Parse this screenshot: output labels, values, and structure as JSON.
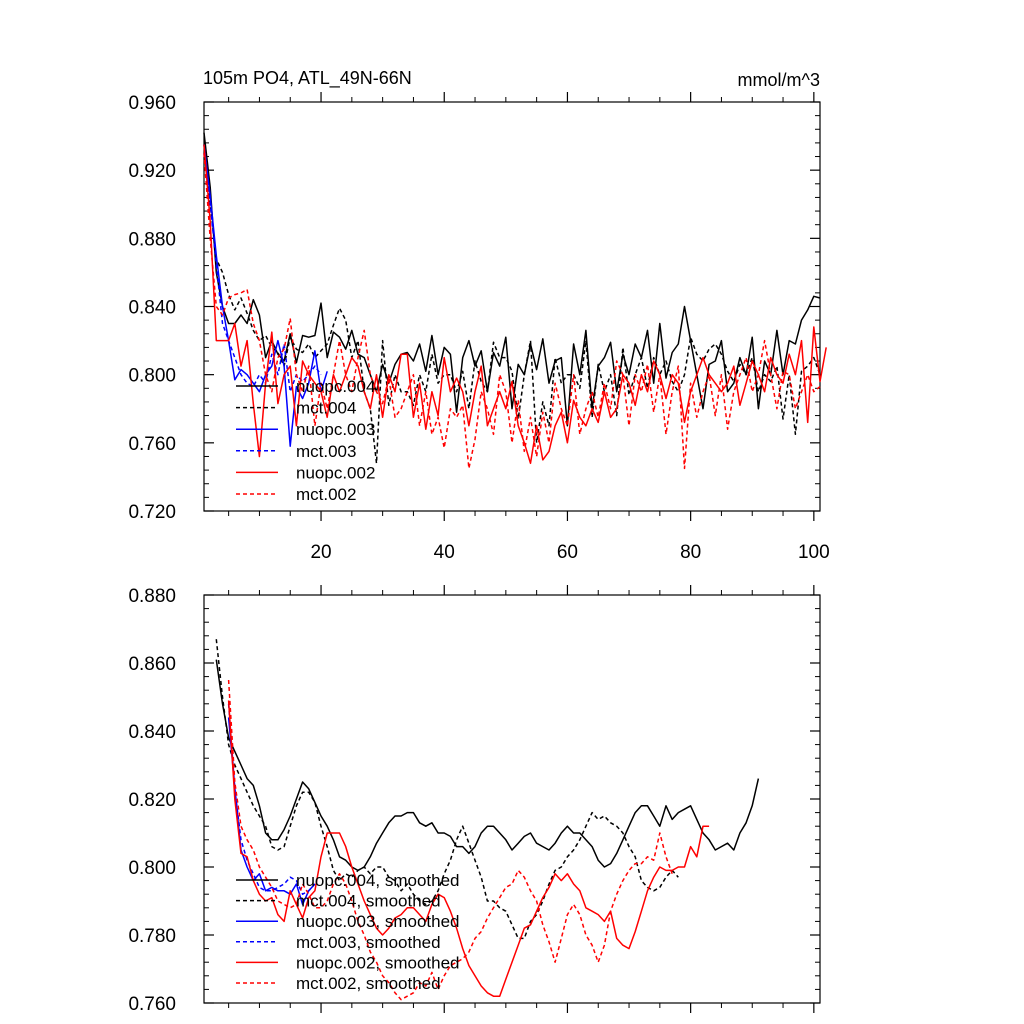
{
  "chart_data": [
    {
      "type": "line",
      "title": "105m PO4, ATL_49N-66N",
      "units": "mmol/m^3",
      "xlim": [
        1,
        101
      ],
      "ylim": [
        0.72,
        0.96
      ],
      "xticks": [
        20,
        40,
        60,
        80,
        100
      ],
      "yticks": [
        "0.720",
        "0.760",
        "0.800",
        "0.840",
        "0.880",
        "0.920",
        "0.960"
      ],
      "series": [
        {
          "name": "nuopc.004",
          "color": "#000000",
          "dash": false,
          "x_start": 1,
          "values": [
            0.942,
            0.91,
            0.86,
            0.84,
            0.83,
            0.83,
            0.835,
            0.83,
            0.844,
            0.835,
            0.81,
            0.82,
            0.812,
            0.808,
            0.824,
            0.807,
            0.823,
            0.822,
            0.823,
            0.842,
            0.81,
            0.825,
            0.822,
            0.815,
            0.826,
            0.812,
            0.81,
            0.8,
            0.79,
            0.806,
            0.795,
            0.806,
            0.812,
            0.813,
            0.808,
            0.818,
            0.802,
            0.823,
            0.8,
            0.816,
            0.812,
            0.778,
            0.81,
            0.82,
            0.805,
            0.814,
            0.79,
            0.813,
            0.805,
            0.822,
            0.78,
            0.806,
            0.8,
            0.818,
            0.803,
            0.821,
            0.795,
            0.808,
            0.81,
            0.77,
            0.818,
            0.8,
            0.826,
            0.78,
            0.805,
            0.81,
            0.819,
            0.79,
            0.812,
            0.8,
            0.818,
            0.81,
            0.826,
            0.795,
            0.83,
            0.798,
            0.813,
            0.818,
            0.84,
            0.82,
            0.8,
            0.78,
            0.806,
            0.808,
            0.82,
            0.79,
            0.795,
            0.81,
            0.8,
            0.822,
            0.78,
            0.808,
            0.8,
            0.826,
            0.8,
            0.82,
            0.818,
            0.832,
            0.838,
            0.846,
            0.845
          ]
        },
        {
          "name": "mct.004",
          "color": "#000000",
          "dash": true,
          "x_start": 1,
          "values": [
            0.935,
            0.9,
            0.868,
            0.86,
            0.847,
            0.838,
            0.845,
            0.836,
            0.826,
            0.82,
            0.823,
            0.816,
            0.813,
            0.805,
            0.822,
            0.815,
            0.813,
            0.818,
            0.81,
            0.814,
            0.818,
            0.829,
            0.839,
            0.832,
            0.81,
            0.82,
            0.79,
            0.78,
            0.748,
            0.82,
            0.782,
            0.8,
            0.79,
            0.79,
            0.782,
            0.8,
            0.79,
            0.812,
            0.795,
            0.8,
            0.8,
            0.79,
            0.802,
            0.78,
            0.808,
            0.796,
            0.79,
            0.819,
            0.81,
            0.81,
            0.802,
            0.774,
            0.8,
            0.82,
            0.76,
            0.784,
            0.77,
            0.81,
            0.795,
            0.8,
            0.8,
            0.792,
            0.82,
            0.775,
            0.806,
            0.79,
            0.8,
            0.776,
            0.816,
            0.788,
            0.8,
            0.81,
            0.792,
            0.81,
            0.8,
            0.808,
            0.796,
            0.79,
            0.8,
            0.822,
            0.812,
            0.808,
            0.815,
            0.818,
            0.812,
            0.802,
            0.796,
            0.806,
            0.8,
            0.81,
            0.79,
            0.8,
            0.796,
            0.805,
            0.774,
            0.8,
            0.765,
            0.802,
            0.805,
            0.81,
            0.8
          ]
        },
        {
          "name": "nuopc.003",
          "color": "#0000ff",
          "dash": false,
          "x_start": 1,
          "values": [
            0.935,
            0.905,
            0.87,
            0.84,
            0.82,
            0.797,
            0.803,
            0.8,
            0.795,
            0.79,
            0.8,
            0.805,
            0.82,
            0.805,
            0.758,
            0.793,
            0.786,
            0.795,
            0.814,
            0.79,
            0.802
          ]
        },
        {
          "name": "mct.003",
          "color": "#0000ff",
          "dash": true,
          "x_start": 1,
          "values": [
            0.93,
            0.9,
            0.865,
            0.83,
            0.82,
            0.81,
            0.8,
            0.795,
            0.793,
            0.8,
            0.795,
            0.812,
            0.8,
            0.818,
            0.79,
            0.8,
            0.796,
            0.8,
            0.805,
            0.8
          ]
        },
        {
          "name": "nuopc.002",
          "color": "#ff0000",
          "dash": false,
          "x_start": 1,
          "values": [
            0.935,
            0.89,
            0.82,
            0.82,
            0.82,
            0.83,
            0.805,
            0.82,
            0.783,
            0.752,
            0.795,
            0.825,
            0.783,
            0.8,
            0.805,
            0.77,
            0.808,
            0.8,
            0.795,
            0.79,
            0.775,
            0.8,
            0.79,
            0.8,
            0.81,
            0.805,
            0.79,
            0.78,
            0.8,
            0.775,
            0.8,
            0.79,
            0.812,
            0.812,
            0.775,
            0.795,
            0.768,
            0.79,
            0.776,
            0.81,
            0.79,
            0.798,
            0.79,
            0.77,
            0.79,
            0.805,
            0.77,
            0.78,
            0.79,
            0.78,
            0.796,
            0.77,
            0.76,
            0.748,
            0.77,
            0.75,
            0.755,
            0.77,
            0.778,
            0.76,
            0.785,
            0.775,
            0.77,
            0.78,
            0.772,
            0.79,
            0.775,
            0.78,
            0.8,
            0.795,
            0.782,
            0.8,
            0.79,
            0.808,
            0.8,
            0.786,
            0.8,
            0.795,
            0.772,
            0.79,
            0.8,
            0.81,
            0.8,
            0.795,
            0.79,
            0.795,
            0.805,
            0.782,
            0.795,
            0.808,
            0.8,
            0.79,
            0.81,
            0.8,
            0.795,
            0.812,
            0.8,
            0.82,
            0.772,
            0.828,
            0.796,
            0.816
          ]
        },
        {
          "name": "mct.002",
          "color": "#ff0000",
          "dash": true,
          "x_start": 1,
          "values": [
            0.93,
            0.88,
            0.84,
            0.835,
            0.845,
            0.847,
            0.848,
            0.85,
            0.83,
            0.82,
            0.8,
            0.79,
            0.81,
            0.815,
            0.833,
            0.8,
            0.79,
            0.805,
            0.77,
            0.795,
            0.78,
            0.8,
            0.82,
            0.8,
            0.79,
            0.81,
            0.826,
            0.8,
            0.79,
            0.783,
            0.798,
            0.775,
            0.78,
            0.79,
            0.8,
            0.77,
            0.79,
            0.765,
            0.775,
            0.757,
            0.78,
            0.775,
            0.782,
            0.745,
            0.762,
            0.79,
            0.78,
            0.765,
            0.8,
            0.79,
            0.76,
            0.785,
            0.755,
            0.775,
            0.752,
            0.778,
            0.76,
            0.795,
            0.78,
            0.77,
            0.8,
            0.765,
            0.78,
            0.79,
            0.775,
            0.795,
            0.78,
            0.808,
            0.8,
            0.77,
            0.8,
            0.79,
            0.806,
            0.778,
            0.8,
            0.765,
            0.79,
            0.805,
            0.745,
            0.795,
            0.775,
            0.79,
            0.8,
            0.776,
            0.8,
            0.768,
            0.79,
            0.8,
            0.81,
            0.79,
            0.8,
            0.82,
            0.8,
            0.78,
            0.802,
            0.8,
            0.78,
            0.79,
            0.8,
            0.79,
            0.793
          ]
        }
      ]
    },
    {
      "type": "line",
      "xlim": [
        1,
        101
      ],
      "ylim": [
        0.76,
        0.88
      ],
      "yticks": [
        "0.760",
        "0.780",
        "0.800",
        "0.820",
        "0.840",
        "0.860",
        "0.880"
      ],
      "series": [
        {
          "name": "nuopc.004, smoothed",
          "color": "#000000",
          "dash": false,
          "x_start": 3,
          "values": [
            0.861,
            0.848,
            0.838,
            0.834,
            0.83,
            0.826,
            0.824,
            0.818,
            0.81,
            0.808,
            0.808,
            0.811,
            0.815,
            0.82,
            0.825,
            0.823,
            0.819,
            0.815,
            0.812,
            0.808,
            0.803,
            0.802,
            0.8,
            0.799,
            0.8,
            0.803,
            0.807,
            0.81,
            0.813,
            0.815,
            0.815,
            0.816,
            0.816,
            0.813,
            0.812,
            0.813,
            0.81,
            0.81,
            0.809,
            0.806,
            0.806,
            0.804,
            0.806,
            0.81,
            0.812,
            0.812,
            0.81,
            0.808,
            0.805,
            0.807,
            0.809,
            0.81,
            0.807,
            0.806,
            0.805,
            0.807,
            0.81,
            0.812,
            0.81,
            0.81,
            0.808,
            0.806,
            0.802,
            0.8,
            0.801,
            0.804,
            0.808,
            0.812,
            0.816,
            0.818,
            0.818,
            0.815,
            0.812,
            0.818,
            0.814,
            0.816,
            0.817,
            0.818,
            0.814,
            0.81,
            0.808,
            0.805,
            0.806,
            0.807,
            0.805,
            0.81,
            0.813,
            0.818,
            0.826
          ]
        },
        {
          "name": "mct.004, smoothed",
          "color": "#000000",
          "dash": true,
          "x_start": 3,
          "values": [
            0.867,
            0.85,
            0.836,
            0.83,
            0.826,
            0.822,
            0.818,
            0.815,
            0.812,
            0.806,
            0.805,
            0.806,
            0.812,
            0.818,
            0.822,
            0.822,
            0.819,
            0.812,
            0.806,
            0.799,
            0.796,
            0.798,
            0.797,
            0.799,
            0.8,
            0.798,
            0.8,
            0.8,
            0.797,
            0.796,
            0.793,
            0.795,
            0.792,
            0.79,
            0.789,
            0.79,
            0.793,
            0.798,
            0.802,
            0.808,
            0.812,
            0.807,
            0.802,
            0.797,
            0.79,
            0.79,
            0.788,
            0.787,
            0.783,
            0.779,
            0.779,
            0.784,
            0.786,
            0.79,
            0.795,
            0.799,
            0.8,
            0.803,
            0.805,
            0.808,
            0.812,
            0.816,
            0.814,
            0.815,
            0.813,
            0.812,
            0.81,
            0.806,
            0.803,
            0.796,
            0.794,
            0.793,
            0.794,
            0.797,
            0.799,
            0.797
          ]
        },
        {
          "name": "nuopc.003, smoothed",
          "color": "#0000ff",
          "dash": false,
          "x_start": 5,
          "values": [
            0.844,
            0.823,
            0.805,
            0.8,
            0.796,
            0.798,
            0.793,
            0.794,
            0.793,
            0.793,
            0.792,
            0.795,
            0.789,
            0.793,
            0.795
          ]
        },
        {
          "name": "mct.003, smoothed",
          "color": "#0000ff",
          "dash": true,
          "x_start": 5,
          "values": [
            0.848,
            0.823,
            0.808,
            0.802,
            0.798,
            0.794,
            0.793,
            0.793,
            0.794,
            0.795,
            0.797,
            0.796,
            0.792,
            0.793,
            0.795
          ]
        },
        {
          "name": "nuopc.002, smoothed",
          "color": "#ff0000",
          "dash": false,
          "x_start": 5,
          "values": [
            0.849,
            0.82,
            0.804,
            0.803,
            0.796,
            0.792,
            0.79,
            0.791,
            0.786,
            0.784,
            0.793,
            0.789,
            0.785,
            0.791,
            0.793,
            0.803,
            0.81,
            0.81,
            0.81,
            0.806,
            0.8,
            0.795,
            0.79,
            0.786,
            0.782,
            0.78,
            0.782,
            0.785,
            0.786,
            0.788,
            0.788,
            0.786,
            0.784,
            0.789,
            0.792,
            0.791,
            0.787,
            0.782,
            0.776,
            0.771,
            0.768,
            0.765,
            0.763,
            0.762,
            0.762,
            0.767,
            0.772,
            0.777,
            0.782,
            0.783,
            0.787,
            0.791,
            0.794,
            0.798,
            0.796,
            0.798,
            0.795,
            0.793,
            0.788,
            0.787,
            0.786,
            0.784,
            0.787,
            0.779,
            0.777,
            0.776,
            0.781,
            0.787,
            0.793,
            0.797,
            0.8,
            0.799,
            0.799,
            0.8,
            0.8,
            0.806,
            0.803,
            0.812,
            0.812
          ]
        },
        {
          "name": "mct.002, smoothed",
          "color": "#ff0000",
          "dash": true,
          "x_start": 5,
          "values": [
            0.855,
            0.825,
            0.812,
            0.808,
            0.805,
            0.8,
            0.797,
            0.794,
            0.79,
            0.789,
            0.788,
            0.789,
            0.795,
            0.792,
            0.788,
            0.788,
            0.79,
            0.795,
            0.798,
            0.795,
            0.79,
            0.784,
            0.78,
            0.775,
            0.772,
            0.768,
            0.766,
            0.763,
            0.761,
            0.762,
            0.763,
            0.766,
            0.765,
            0.769,
            0.764,
            0.768,
            0.771,
            0.772,
            0.773,
            0.775,
            0.779,
            0.781,
            0.785,
            0.788,
            0.791,
            0.794,
            0.795,
            0.799,
            0.797,
            0.793,
            0.79,
            0.783,
            0.778,
            0.772,
            0.779,
            0.786,
            0.789,
            0.786,
            0.78,
            0.777,
            0.772,
            0.777,
            0.787,
            0.792,
            0.796,
            0.799,
            0.801,
            0.801,
            0.803,
            0.802,
            0.81,
            0.803,
            0.798
          ]
        }
      ]
    }
  ]
}
